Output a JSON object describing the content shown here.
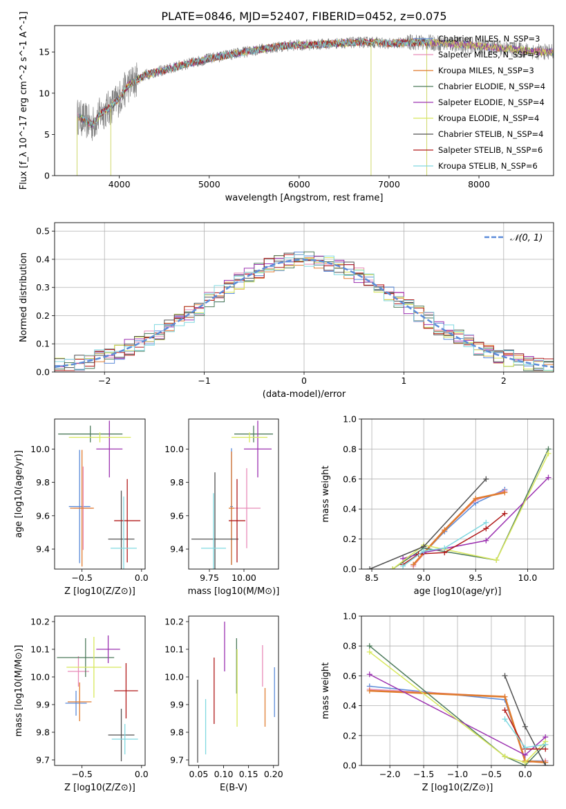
{
  "figure_title": "PLATE=0846, MJD=52407, FIBERID=0452, z=0.075",
  "legend_series": [
    {
      "name": "Chabrier MILES, N_SSP=3",
      "color": "#5b8bd9"
    },
    {
      "name": "Salpeter MILES, N_SSP=3",
      "color": "#e88ab8"
    },
    {
      "name": "Kroupa MILES, N_SSP=3",
      "color": "#e07b2e"
    },
    {
      "name": "Chabrier ELODIE, N_SSP=4",
      "color": "#4c7a5a"
    },
    {
      "name": "Salpeter ELODIE, N_SSP=4",
      "color": "#9b30b0"
    },
    {
      "name": "Kroupa ELODIE, N_SSP=4",
      "color": "#d8e85a"
    },
    {
      "name": "Chabrier STELIB, N_SSP=4",
      "color": "#505050"
    },
    {
      "name": "Salpeter STELIB, N_SSP=6",
      "color": "#b01818"
    },
    {
      "name": "Kroupa STELIB, N_SSP=6",
      "color": "#7fd8e0"
    }
  ],
  "chart_data": [
    {
      "id": "spectrum",
      "type": "line",
      "title": "PLATE=0846, MJD=52407, FIBERID=0452, z=0.075",
      "xlabel": "wavelength [Angstrom, rest frame]",
      "ylabel": "Flux [f_λ 10^-17 erg cm^-2 s^-1 A^-1]",
      "xlim": [
        3280,
        8830
      ],
      "ylim": [
        0,
        18.2
      ],
      "xticks": [
        4000,
        5000,
        6000,
        7000,
        8000
      ],
      "yticks": [
        0,
        5,
        10,
        15
      ],
      "data_envelope": {
        "x": [
          3530,
          3600,
          3700,
          3800,
          3900,
          4000,
          4100,
          4300,
          4500,
          4700,
          5000,
          5300,
          5600,
          5900,
          6200,
          6500,
          6800,
          7000,
          7300,
          7500,
          7800,
          8100,
          8400,
          8700
        ],
        "y": [
          7.2,
          6.8,
          6.2,
          7.6,
          8.3,
          9.4,
          11.0,
          12.3,
          12.8,
          13.4,
          14.2,
          14.8,
          15.4,
          15.8,
          15.9,
          16.1,
          16.2,
          16.0,
          16.2,
          16.1,
          15.9,
          15.6,
          15.3,
          15.0
        ]
      },
      "legend_position": "right"
    },
    {
      "id": "residuals",
      "type": "step",
      "xlabel": "(data-model)/error",
      "ylabel": "Normed distribution",
      "xlim": [
        -2.5,
        2.5
      ],
      "ylim": [
        0,
        0.53
      ],
      "xticks": [
        -2,
        -1,
        0,
        1,
        2
      ],
      "yticks": [
        0.0,
        0.1,
        0.2,
        0.3,
        0.4,
        0.5
      ],
      "gaussian_label": "𝒩(0, 1)",
      "gaussian_color": "#5b8bd9",
      "grid": true,
      "legend_position": "top-right"
    },
    {
      "id": "age_vs_Z",
      "type": "errorbar",
      "xlabel": "Z [log10(Z/Z⊙)]",
      "ylabel": "age [log10(age/yr)]",
      "xlim": [
        -0.73,
        0.03
      ],
      "ylim": [
        9.28,
        10.18
      ],
      "xticks": [
        -0.5,
        0.0
      ],
      "yticks": [
        9.4,
        9.6,
        9.8,
        10.0
      ],
      "points": [
        {
          "x": -0.52,
          "y": 9.655,
          "xerr": 0.09,
          "yerr": 0.34
        },
        {
          "x": -0.49,
          "y": 9.645,
          "xerr": 0.08,
          "yerr": 0.25
        },
        {
          "x": -0.5,
          "y": 9.645,
          "xerr": 0.1,
          "yerr": 0.35
        },
        {
          "x": -0.43,
          "y": 10.09,
          "xerr": 0.27,
          "yerr": 0.05
        },
        {
          "x": -0.27,
          "y": 10.0,
          "xerr": 0.11,
          "yerr": 0.17
        },
        {
          "x": -0.35,
          "y": 10.07,
          "xerr": 0.26,
          "yerr": 0.03
        },
        {
          "x": -0.17,
          "y": 9.46,
          "xerr": 0.11,
          "yerr": 0.29
        },
        {
          "x": -0.12,
          "y": 9.57,
          "xerr": 0.11,
          "yerr": 0.25
        },
        {
          "x": -0.15,
          "y": 9.405,
          "xerr": 0.11,
          "yerr": 0.31
        }
      ]
    },
    {
      "id": "age_vs_mass",
      "type": "errorbar",
      "xlabel": "mass [log10(M/M⊙)]",
      "ylabel": "",
      "xlim": [
        9.6,
        10.25
      ],
      "ylim": [
        9.28,
        10.18
      ],
      "xticks": [
        9.75,
        10.0
      ],
      "yticks": [
        9.4,
        9.6,
        9.8,
        10.0
      ],
      "points": [
        {
          "x": 9.91,
          "y": 9.655,
          "xerr": 0.01,
          "yerr": 0.35
        },
        {
          "x": 10.02,
          "y": 9.645,
          "xerr": 0.1,
          "yerr": 0.24
        },
        {
          "x": 9.91,
          "y": 9.645,
          "xerr": 0.02,
          "yerr": 0.34
        },
        {
          "x": 10.07,
          "y": 10.09,
          "xerr": 0.14,
          "yerr": 0.05
        },
        {
          "x": 10.1,
          "y": 10.0,
          "xerr": 0.1,
          "yerr": 0.17
        },
        {
          "x": 10.04,
          "y": 10.07,
          "xerr": 0.13,
          "yerr": 0.03
        },
        {
          "x": 9.79,
          "y": 9.46,
          "xerr": 0.17,
          "yerr": 0.4
        },
        {
          "x": 9.95,
          "y": 9.57,
          "xerr": 0.06,
          "yerr": 0.25
        },
        {
          "x": 9.78,
          "y": 9.405,
          "xerr": 0.09,
          "yerr": 0.33
        }
      ]
    },
    {
      "id": "weight_vs_age",
      "type": "line",
      "xlabel": "age [log10(age/yr)]",
      "ylabel": "mass weight",
      "xlim": [
        8.4,
        10.25
      ],
      "ylim": [
        0.0,
        1.0
      ],
      "xticks": [
        8.5,
        9.0,
        9.5,
        10.0
      ],
      "yticks": [
        0.0,
        0.2,
        0.4,
        0.6,
        0.8,
        1.0
      ],
      "grid": true,
      "series": [
        {
          "x": [
            8.9,
            9.2,
            9.5,
            9.78
          ],
          "y": [
            0.03,
            0.25,
            0.44,
            0.53
          ]
        },
        {
          "x": [
            8.9,
            9.2,
            9.5,
            9.78
          ],
          "y": [
            0.02,
            0.26,
            0.46,
            0.52
          ]
        },
        {
          "x": [
            8.9,
            9.2,
            9.5,
            9.78
          ],
          "y": [
            0.03,
            0.26,
            0.47,
            0.51
          ]
        },
        {
          "x": [
            8.7,
            9.0,
            9.7,
            10.2
          ],
          "y": [
            0.0,
            0.14,
            0.06,
            0.8
          ]
        },
        {
          "x": [
            8.8,
            9.0,
            9.6,
            10.2
          ],
          "y": [
            0.07,
            0.11,
            0.19,
            0.61
          ]
        },
        {
          "x": [
            8.7,
            9.0,
            9.7,
            10.2
          ],
          "y": [
            0.0,
            0.16,
            0.06,
            0.77
          ]
        },
        {
          "x": [
            8.48,
            9.0,
            9.6
          ],
          "y": [
            0.0,
            0.15,
            0.6
          ]
        },
        {
          "x": [
            8.8,
            8.95,
            9.2,
            9.6,
            9.78
          ],
          "y": [
            0.03,
            0.1,
            0.11,
            0.27,
            0.37
          ]
        },
        {
          "x": [
            8.8,
            9.0,
            9.2,
            9.6
          ],
          "y": [
            0.02,
            0.12,
            0.14,
            0.31
          ]
        }
      ]
    },
    {
      "id": "mass_vs_Z",
      "type": "errorbar",
      "xlabel": "Z [log10(Z/Z⊙)]",
      "ylabel": "mass [log10(M/M⊙)]",
      "xlim": [
        -0.73,
        0.03
      ],
      "ylim": [
        9.68,
        10.22
      ],
      "xticks": [
        -0.5,
        0.0
      ],
      "yticks": [
        9.7,
        9.8,
        9.9,
        10.0,
        10.1,
        10.2
      ],
      "points": [
        {
          "x": -0.55,
          "y": 9.905,
          "xerr": 0.09,
          "yerr": 0.045
        },
        {
          "x": -0.53,
          "y": 10.02,
          "xerr": 0.09,
          "yerr": 0.055
        },
        {
          "x": -0.52,
          "y": 9.91,
          "xerr": 0.1,
          "yerr": 0.07
        },
        {
          "x": -0.47,
          "y": 10.07,
          "xerr": 0.24,
          "yerr": 0.07
        },
        {
          "x": -0.28,
          "y": 10.1,
          "xerr": 0.1,
          "yerr": 0.05
        },
        {
          "x": -0.4,
          "y": 10.035,
          "xerr": 0.23,
          "yerr": 0.11
        },
        {
          "x": -0.17,
          "y": 9.79,
          "xerr": 0.11,
          "yerr": 0.095
        },
        {
          "x": -0.13,
          "y": 9.95,
          "xerr": 0.1,
          "yerr": 0.1
        },
        {
          "x": -0.14,
          "y": 9.775,
          "xerr": 0.11,
          "yerr": 0.055
        }
      ]
    },
    {
      "id": "mass_vs_ebv",
      "type": "errorbar",
      "xlabel": "E(B-V)",
      "ylabel": "",
      "xlim": [
        0.03,
        0.21
      ],
      "ylim": [
        9.68,
        10.22
      ],
      "xticks": [
        0.05,
        0.1,
        0.15,
        0.2
      ],
      "yticks": [
        9.7,
        9.8,
        9.9,
        10.0,
        10.1,
        10.2
      ],
      "points": [
        {
          "x": 0.202,
          "y": 9.945,
          "xerr": 0.0,
          "yerr": 0.09
        },
        {
          "x": 0.178,
          "y": 10.04,
          "xerr": 0.0,
          "yerr": 0.075
        },
        {
          "x": 0.183,
          "y": 9.89,
          "xerr": 0.0,
          "yerr": 0.07
        },
        {
          "x": 0.126,
          "y": 10.04,
          "xerr": 0.0,
          "yerr": 0.1
        },
        {
          "x": 0.102,
          "y": 10.11,
          "xerr": 0.0,
          "yerr": 0.09
        },
        {
          "x": 0.127,
          "y": 9.96,
          "xerr": 0.0,
          "yerr": 0.14
        },
        {
          "x": 0.048,
          "y": 9.84,
          "xerr": 0.0,
          "yerr": 0.15
        },
        {
          "x": 0.081,
          "y": 9.95,
          "xerr": 0.0,
          "yerr": 0.12
        },
        {
          "x": 0.064,
          "y": 9.82,
          "xerr": 0.0,
          "yerr": 0.1
        }
      ]
    },
    {
      "id": "weight_vs_Z",
      "type": "line",
      "xlabel": "Z [log10(Z/Z⊙)]",
      "ylabel": "mass weight",
      "xlim": [
        -2.42,
        0.42
      ],
      "ylim": [
        0.0,
        1.0
      ],
      "xticks": [
        -2.0,
        -1.5,
        -1.0,
        -0.5,
        0.0
      ],
      "yticks": [
        0.0,
        0.2,
        0.4,
        0.6,
        0.8,
        1.0
      ],
      "grid": true,
      "series": [
        {
          "x": [
            -2.3,
            -0.3,
            0.0,
            0.3
          ],
          "y": [
            0.53,
            0.44,
            0.03,
            0.03
          ]
        },
        {
          "x": [
            -2.3,
            -0.3,
            0.0,
            0.3
          ],
          "y": [
            0.51,
            0.46,
            0.02,
            0.03
          ]
        },
        {
          "x": [
            -2.3,
            -0.3,
            0.0,
            0.3
          ],
          "y": [
            0.5,
            0.46,
            0.03,
            0.02
          ]
        },
        {
          "x": [
            -2.3,
            -0.3,
            0.0,
            0.3
          ],
          "y": [
            0.8,
            0.06,
            0.0,
            0.14
          ]
        },
        {
          "x": [
            -2.3,
            0.0,
            0.3
          ],
          "y": [
            0.61,
            0.07,
            0.19
          ]
        },
        {
          "x": [
            -2.3,
            -0.3,
            0.0,
            0.3
          ],
          "y": [
            0.76,
            0.06,
            0.02,
            0.16
          ]
        },
        {
          "x": [
            -0.3,
            0.0,
            0.3
          ],
          "y": [
            0.6,
            0.26,
            0.0
          ]
        },
        {
          "x": [
            -0.3,
            0.0,
            0.3
          ],
          "y": [
            0.37,
            0.11,
            0.11
          ]
        },
        {
          "x": [
            -0.3,
            0.0,
            0.3
          ],
          "y": [
            0.31,
            0.12,
            0.14
          ]
        }
      ]
    }
  ]
}
